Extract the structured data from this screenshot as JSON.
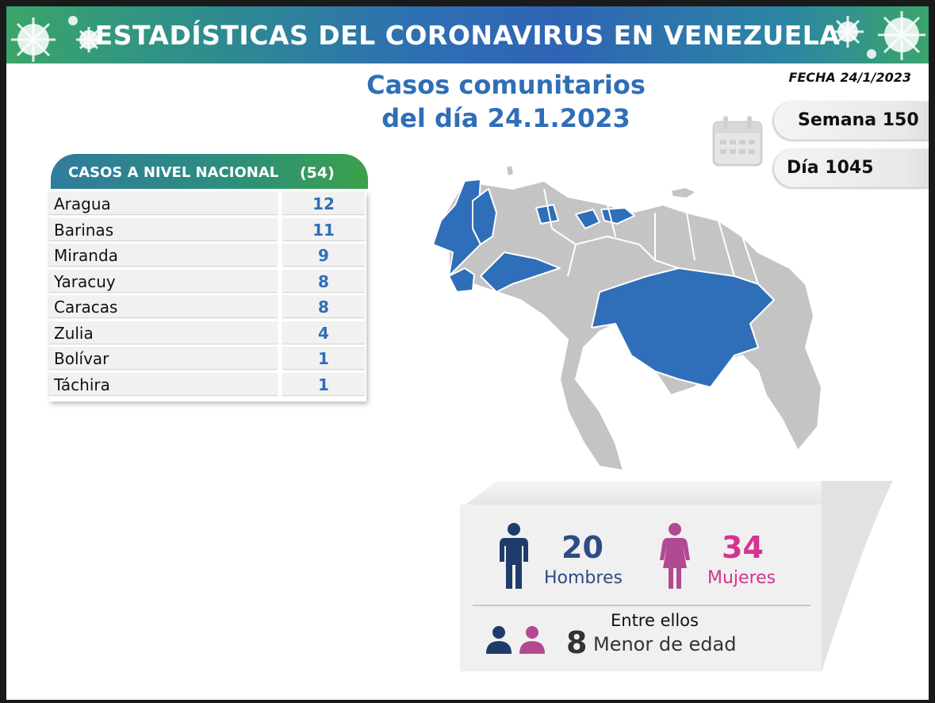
{
  "banner": {
    "title": "ESTADÍSTICAS DEL CORONAVIRUS EN VENEZUELA"
  },
  "date_label": "FECHA 24/1/2023",
  "main_title": {
    "line1": "Casos comunitarios",
    "line2": "del día 24.1.2023"
  },
  "counters": {
    "week": "Semana 150",
    "day": "Día 1045"
  },
  "national": {
    "heading": "CASOS A NIVEL NACIONAL",
    "total": "(54)",
    "rows": [
      {
        "state": "Aragua",
        "cases": "12"
      },
      {
        "state": "Barinas",
        "cases": "11"
      },
      {
        "state": "Miranda",
        "cases": "9"
      },
      {
        "state": "Yaracuy",
        "cases": "8"
      },
      {
        "state": "Caracas",
        "cases": "8"
      },
      {
        "state": "Zulia",
        "cases": "4"
      },
      {
        "state": "Bolívar",
        "cases": "1"
      },
      {
        "state": "Táchira",
        "cases": "1"
      }
    ]
  },
  "gender": {
    "men_count": "20",
    "men_label": "Hombres",
    "women_count": "34",
    "women_label": "Mujeres",
    "between_label": "Entre ellos",
    "minors_count": "8",
    "minors_label": "Menor de edad"
  },
  "colors": {
    "highlight": "#2f6eb8",
    "state_fill": "#c4c4c4",
    "men": "#2f4a85",
    "women": "#d6338f",
    "minor_men": "#1f3b6a",
    "minor_women": "#b24a92"
  },
  "icons": {
    "calendar": "calendar-icon",
    "virus": "virus-icon",
    "man": "man-icon",
    "woman": "woman-icon"
  }
}
